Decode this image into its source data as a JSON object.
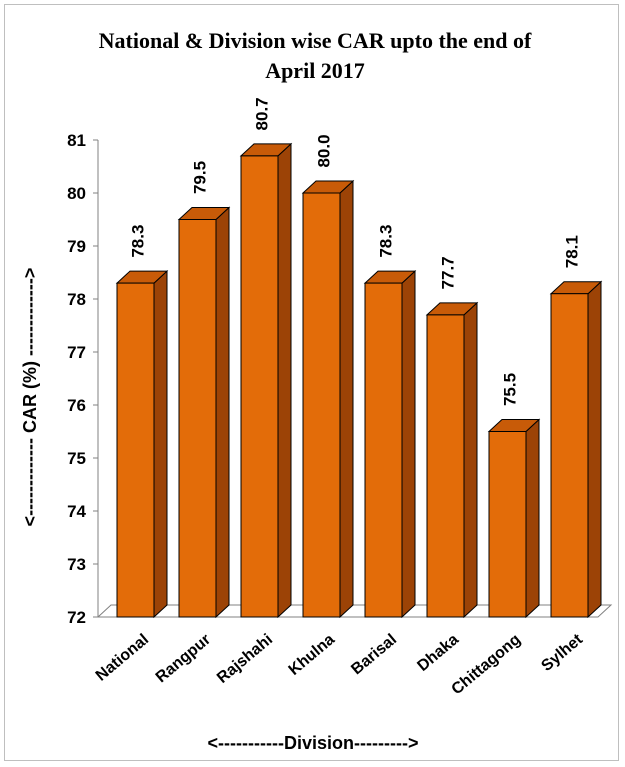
{
  "chart_data": {
    "type": "bar",
    "title_lines": [
      "National & Division wise CAR upto the end of",
      "April 2017"
    ],
    "xlabel": "<-----------Division--------->",
    "ylabel": "<------------- CAR (%) ------------->",
    "ylim": [
      72,
      81
    ],
    "yticks": [
      "72",
      "73",
      "74",
      "75",
      "76",
      "77",
      "78",
      "79",
      "80",
      "81"
    ],
    "categories": [
      "National",
      "Rangpur",
      "Rajshahi",
      "Khulna",
      "Barisal",
      "Dhaka",
      "Chittagong",
      "Sylhet"
    ],
    "values": [
      78.3,
      79.5,
      80.7,
      80.0,
      78.3,
      77.7,
      75.5,
      78.1
    ],
    "value_labels": [
      "78.3",
      "79.5",
      "80.7",
      "80.0",
      "78.3",
      "77.7",
      "75.5",
      "78.1"
    ],
    "grid": false,
    "legend": "none",
    "colors": {
      "bar_front": "#E36C09",
      "bar_side": "#9C4306",
      "bar_top": "#C85B08",
      "outline": "#000000",
      "axis": "#808080"
    }
  }
}
